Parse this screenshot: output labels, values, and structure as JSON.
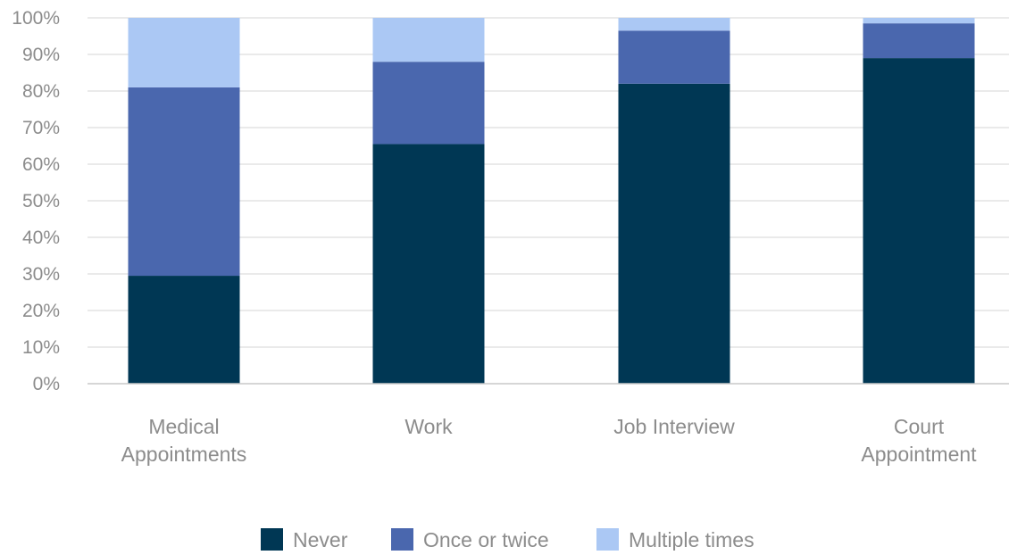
{
  "chart_data": {
    "type": "bar",
    "stacked": true,
    "categories": [
      [
        "Medical",
        "Appointments"
      ],
      [
        "Work"
      ],
      [
        "Job Interview"
      ],
      [
        "Court",
        "Appointment"
      ]
    ],
    "series": [
      {
        "name": "Never",
        "values": [
          29.5,
          65.5,
          82,
          89
        ],
        "color": "#003754"
      },
      {
        "name": "Once or twice",
        "values": [
          51.5,
          22.5,
          14.5,
          9.5
        ],
        "color": "#4a67ae"
      },
      {
        "name": "Multiple times",
        "values": [
          19,
          12,
          3.5,
          1.5
        ],
        "color": "#abc8f4"
      }
    ],
    "yticks": [
      "0%",
      "10%",
      "20%",
      "30%",
      "40%",
      "50%",
      "60%",
      "70%",
      "80%",
      "90%",
      "100%"
    ],
    "ylim": [
      0,
      100
    ],
    "grid": true,
    "legend_position": "bottom",
    "title": "",
    "xlabel": "",
    "ylabel": ""
  }
}
